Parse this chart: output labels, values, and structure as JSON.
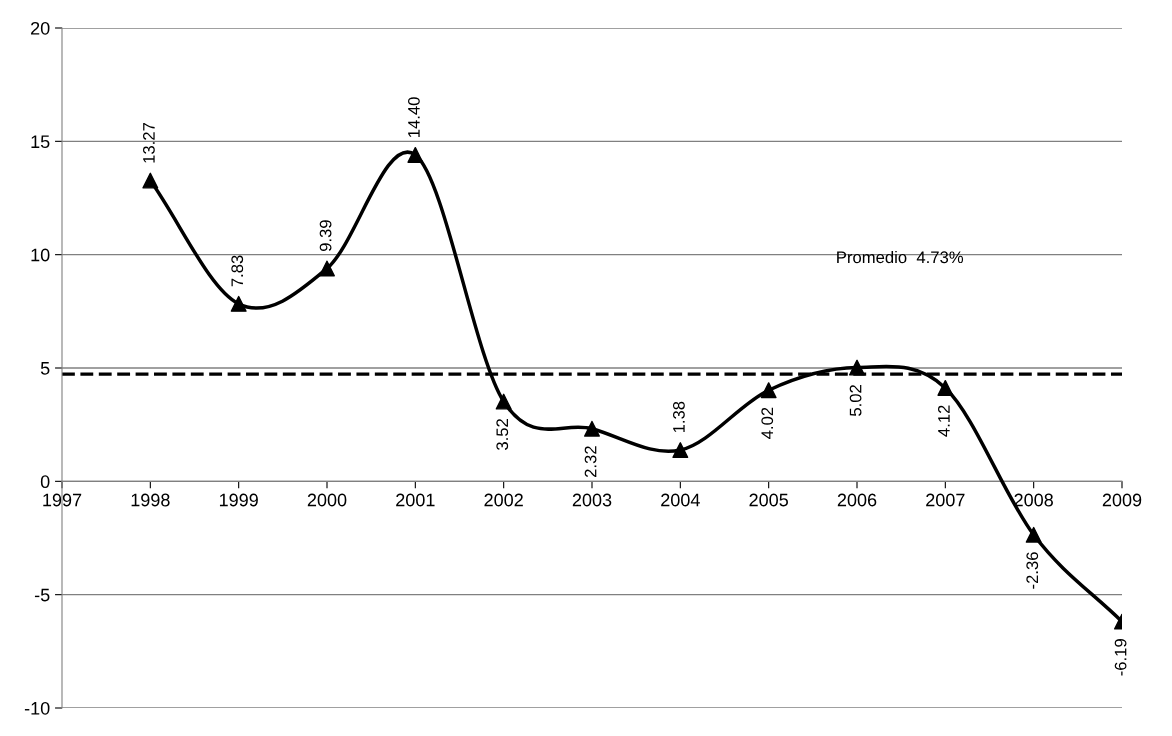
{
  "chart_data": {
    "type": "line",
    "x": [
      1998,
      1999,
      2000,
      2001,
      2002,
      2003,
      2004,
      2005,
      2006,
      2007,
      2008,
      2009
    ],
    "series": [
      {
        "color": "#000000",
        "values": [
          13.27,
          7.83,
          9.39,
          14.4,
          3.52,
          2.32,
          1.38,
          4.02,
          5.02,
          4.12,
          -2.36,
          -6.19
        ],
        "value_labels": [
          "13.27",
          "7.83",
          "9.39",
          "14.40",
          "3.52",
          "2.32",
          "1.38",
          "4.02",
          "5.02",
          "4.12",
          "-2.36",
          "-6.19"
        ]
      }
    ],
    "xlim": [
      1997,
      2009
    ],
    "xticks": [
      1997,
      1998,
      1999,
      2000,
      2001,
      2002,
      2003,
      2004,
      2005,
      2006,
      2007,
      2008,
      2009
    ],
    "ylim": [
      -10,
      20
    ],
    "yticks": [
      -10,
      -5,
      0,
      5,
      10,
      15,
      20
    ],
    "grid": "y",
    "marker": "triangle",
    "line_style": "solid",
    "ref_lines": [
      {
        "axis": "y",
        "value": 4.73,
        "label": "Promedio  4.73%",
        "color": "#000000",
        "line_style": "dashed"
      }
    ]
  }
}
